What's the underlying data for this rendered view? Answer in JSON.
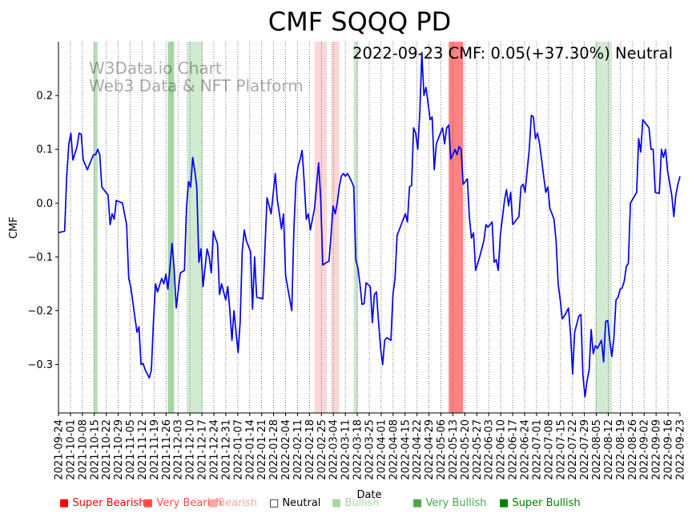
{
  "chart_data": {
    "type": "line",
    "title": "CMF SQQQ PD",
    "xlabel": "Date",
    "ylabel": "CMF",
    "annotation": "2022-09-23 CMF: 0.05(+37.30%) Neutral",
    "watermark": [
      "W3Data.io Chart",
      "Web3 Data & NFT Platform"
    ],
    "ylim": [
      -0.39,
      0.3
    ],
    "yticks": [
      -0.3,
      -0.2,
      -0.1,
      0.0,
      0.1,
      0.2
    ],
    "ytick_labels": [
      "−0.3",
      "−0.2",
      "−0.1",
      "0.0",
      "0.1",
      "0.2"
    ],
    "x_start": "2021-09-24",
    "x_end": "2022-09-23",
    "xtick_labels": [
      "2021-09-24",
      "2021-10-01",
      "2021-10-08",
      "2021-10-15",
      "2021-10-22",
      "2021-10-29",
      "2021-11-05",
      "2021-11-12",
      "2021-11-19",
      "2021-11-26",
      "2021-12-03",
      "2021-12-10",
      "2021-12-17",
      "2021-12-24",
      "2021-12-31",
      "2022-01-07",
      "2022-01-14",
      "2022-01-21",
      "2022-01-28",
      "2022-02-04",
      "2022-02-11",
      "2022-02-18",
      "2022-02-25",
      "2022-03-04",
      "2022-03-11",
      "2022-03-18",
      "2022-03-25",
      "2022-04-01",
      "2022-04-08",
      "2022-04-15",
      "2022-04-22",
      "2022-04-29",
      "2022-05-06",
      "2022-05-13",
      "2022-05-20",
      "2022-05-27",
      "2022-06-03",
      "2022-06-10",
      "2022-06-17",
      "2022-06-24",
      "2022-07-01",
      "2022-07-08",
      "2022-07-15",
      "2022-07-22",
      "2022-07-29",
      "2022-08-05",
      "2022-08-12",
      "2022-08-19",
      "2022-08-26",
      "2022-09-02",
      "2022-09-09",
      "2022-09-16",
      "2022-09-23"
    ],
    "series": [
      {
        "name": "CMF",
        "color": "#0000ee",
        "points": [
          [
            0,
            -0.055
          ],
          [
            3,
            -0.052
          ],
          [
            4,
            0.05
          ],
          [
            5,
            0.11
          ],
          [
            6,
            0.13
          ],
          [
            7,
            0.08
          ],
          [
            9,
            0.105
          ],
          [
            10,
            0.13
          ],
          [
            11,
            0.128
          ],
          [
            12,
            0.08
          ],
          [
            14,
            0.062
          ],
          [
            15,
            0.072
          ],
          [
            17,
            0.09
          ],
          [
            18,
            0.09
          ],
          [
            19,
            0.1
          ],
          [
            20,
            0.09
          ],
          [
            21,
            0.03
          ],
          [
            24,
            0.015
          ],
          [
            25,
            -0.04
          ],
          [
            26,
            -0.02
          ],
          [
            27,
            -0.03
          ],
          [
            28,
            0.005
          ],
          [
            31,
            0.0
          ],
          [
            32,
            -0.02
          ],
          [
            33,
            -0.04
          ],
          [
            34,
            -0.14
          ],
          [
            35,
            -0.155
          ],
          [
            38,
            -0.24
          ],
          [
            39,
            -0.23
          ],
          [
            40,
            -0.3
          ],
          [
            41,
            -0.298
          ],
          [
            42,
            -0.31
          ],
          [
            44,
            -0.325
          ],
          [
            45,
            -0.31
          ],
          [
            46,
            -0.22
          ],
          [
            47,
            -0.15
          ],
          [
            48,
            -0.165
          ],
          [
            50,
            -0.14
          ],
          [
            51,
            -0.15
          ],
          [
            52,
            -0.132
          ],
          [
            53,
            -0.16
          ],
          [
            54,
            -0.12
          ],
          [
            55,
            -0.075
          ],
          [
            56,
            -0.12
          ],
          [
            57,
            -0.195
          ],
          [
            59,
            -0.13
          ],
          [
            61,
            -0.125
          ],
          [
            62,
            -0.01
          ],
          [
            63,
            0.04
          ],
          [
            64,
            0.03
          ],
          [
            65,
            0.085
          ],
          [
            66,
            0.06
          ],
          [
            67,
            0.03
          ],
          [
            68,
            -0.11
          ],
          [
            69,
            -0.085
          ],
          [
            70,
            -0.155
          ],
          [
            72,
            -0.085
          ],
          [
            73,
            -0.1
          ],
          [
            74,
            -0.13
          ],
          [
            75,
            -0.052
          ],
          [
            76,
            -0.065
          ],
          [
            77,
            -0.075
          ],
          [
            78,
            -0.17
          ],
          [
            79,
            -0.15
          ],
          [
            81,
            -0.18
          ],
          [
            82,
            -0.155
          ],
          [
            83,
            -0.2
          ],
          [
            84,
            -0.255
          ],
          [
            85,
            -0.2
          ],
          [
            86,
            -0.24
          ],
          [
            87,
            -0.278
          ],
          [
            88,
            -0.22
          ],
          [
            89,
            -0.09
          ],
          [
            90,
            -0.05
          ],
          [
            91,
            -0.07
          ],
          [
            93,
            -0.09
          ],
          [
            94,
            -0.197
          ],
          [
            95,
            -0.1
          ],
          [
            96,
            -0.175
          ],
          [
            99,
            -0.178
          ],
          [
            101,
            0.01
          ],
          [
            102,
            -0.005
          ],
          [
            103,
            -0.02
          ],
          [
            105,
            0.055
          ],
          [
            106,
            0.005
          ],
          [
            107,
            -0.02
          ],
          [
            108,
            -0.048
          ],
          [
            109,
            -0.02
          ],
          [
            110,
            -0.135
          ],
          [
            113,
            -0.2
          ],
          [
            114,
            -0.05
          ],
          [
            115,
            0.04
          ],
          [
            116,
            0.068
          ],
          [
            117,
            0.08
          ],
          [
            118,
            0.098
          ],
          [
            119,
            0.04
          ],
          [
            120,
            -0.03
          ],
          [
            121,
            -0.02
          ],
          [
            122,
            -0.05
          ],
          [
            124,
            -0.01
          ],
          [
            126,
            0.075
          ],
          [
            127,
            0.01
          ],
          [
            128,
            -0.115
          ],
          [
            130,
            -0.11
          ],
          [
            131,
            -0.108
          ],
          [
            132,
            -0.06
          ],
          [
            133,
            -0.005
          ],
          [
            134,
            -0.02
          ],
          [
            135,
            0.0
          ],
          [
            136,
            0.03
          ],
          [
            137,
            0.05
          ],
          [
            138,
            0.055
          ],
          [
            139,
            0.05
          ],
          [
            140,
            0.055
          ],
          [
            141,
            0.048
          ],
          [
            142,
            0.04
          ],
          [
            143,
            0.03
          ],
          [
            144,
            -0.105
          ],
          [
            145,
            -0.12
          ],
          [
            146,
            -0.15
          ],
          [
            147,
            -0.188
          ],
          [
            148,
            -0.187
          ],
          [
            149,
            -0.148
          ],
          [
            151,
            -0.155
          ],
          [
            152,
            -0.222
          ],
          [
            153,
            -0.17
          ],
          [
            154,
            -0.165
          ],
          [
            155,
            -0.22
          ],
          [
            156,
            -0.27
          ],
          [
            157,
            -0.3
          ],
          [
            158,
            -0.255
          ],
          [
            159,
            -0.25
          ],
          [
            161,
            -0.255
          ],
          [
            162,
            -0.17
          ],
          [
            163,
            -0.14
          ],
          [
            164,
            -0.06
          ],
          [
            167,
            -0.03
          ],
          [
            168,
            -0.02
          ],
          [
            169,
            -0.035
          ],
          [
            170,
            0.03
          ],
          [
            171,
            0.033
          ],
          [
            172,
            0.14
          ],
          [
            173,
            0.13
          ],
          [
            174,
            0.1
          ],
          [
            175,
            0.17
          ],
          [
            176,
            0.28
          ],
          [
            177,
            0.2
          ],
          [
            178,
            0.215
          ],
          [
            180,
            0.155
          ],
          [
            181,
            0.16
          ],
          [
            182,
            0.062
          ],
          [
            183,
            0.11
          ],
          [
            185,
            0.13
          ],
          [
            186,
            0.14
          ],
          [
            187,
            0.11
          ],
          [
            188,
            0.14
          ],
          [
            189,
            0.145
          ],
          [
            190,
            0.082
          ],
          [
            191,
            0.09
          ],
          [
            192,
            0.1
          ],
          [
            193,
            0.09
          ],
          [
            194,
            0.105
          ],
          [
            195,
            0.1
          ],
          [
            196,
            0.035
          ],
          [
            197,
            0.04
          ],
          [
            198,
            0.045
          ],
          [
            199,
            -0.025
          ],
          [
            200,
            -0.065
          ],
          [
            201,
            -0.055
          ],
          [
            202,
            -0.125
          ],
          [
            204,
            -0.1
          ],
          [
            206,
            -0.07
          ],
          [
            207,
            -0.04
          ],
          [
            208,
            -0.045
          ],
          [
            210,
            -0.035
          ],
          [
            211,
            -0.11
          ],
          [
            212,
            -0.105
          ],
          [
            213,
            -0.125
          ],
          [
            214,
            -0.06
          ],
          [
            216,
            0.005
          ],
          [
            217,
            0.025
          ],
          [
            218,
            -0.005
          ],
          [
            219,
            0.02
          ],
          [
            220,
            -0.04
          ],
          [
            222,
            -0.03
          ],
          [
            223,
            -0.025
          ],
          [
            224,
            0.03
          ],
          [
            225,
            0.035
          ],
          [
            226,
            0.02
          ],
          [
            227,
            0.06
          ],
          [
            228,
            0.1
          ],
          [
            229,
            0.163
          ],
          [
            230,
            0.16
          ],
          [
            231,
            0.12
          ],
          [
            232,
            0.13
          ],
          [
            233,
            0.11
          ],
          [
            234,
            0.08
          ],
          [
            235,
            0.05
          ],
          [
            236,
            0.02
          ],
          [
            237,
            0.03
          ],
          [
            238,
            -0.01
          ],
          [
            239,
            -0.02
          ],
          [
            240,
            -0.03
          ],
          [
            241,
            -0.07
          ],
          [
            242,
            -0.15
          ],
          [
            243,
            -0.18
          ],
          [
            244,
            -0.215
          ],
          [
            245,
            -0.21
          ],
          [
            247,
            -0.195
          ],
          [
            248,
            -0.245
          ],
          [
            249,
            -0.318
          ],
          [
            250,
            -0.24
          ],
          [
            252,
            -0.21
          ],
          [
            253,
            -0.207
          ],
          [
            254,
            -0.32
          ],
          [
            255,
            -0.36
          ],
          [
            256,
            -0.33
          ],
          [
            257,
            -0.31
          ],
          [
            258,
            -0.235
          ],
          [
            259,
            -0.28
          ],
          [
            260,
            -0.265
          ],
          [
            261,
            -0.27
          ],
          [
            263,
            -0.255
          ],
          [
            264,
            -0.295
          ],
          [
            265,
            -0.22
          ],
          [
            266,
            -0.218
          ],
          [
            267,
            -0.255
          ],
          [
            268,
            -0.285
          ],
          [
            269,
            -0.25
          ],
          [
            270,
            -0.18
          ],
          [
            271,
            -0.175
          ],
          [
            272,
            -0.16
          ],
          [
            273,
            -0.158
          ],
          [
            274,
            -0.145
          ],
          [
            275,
            -0.118
          ],
          [
            276,
            -0.112
          ],
          [
            277,
            0.0
          ],
          [
            280,
            0.02
          ],
          [
            281,
            0.12
          ],
          [
            282,
            0.095
          ],
          [
            283,
            0.155
          ],
          [
            286,
            0.14
          ],
          [
            287,
            0.1
          ],
          [
            288,
            0.1
          ],
          [
            289,
            0.02
          ],
          [
            291,
            0.018
          ],
          [
            292,
            0.1
          ],
          [
            293,
            0.085
          ],
          [
            294,
            0.1
          ],
          [
            295,
            0.06
          ],
          [
            297,
            0.015
          ],
          [
            298,
            -0.025
          ],
          [
            299,
            0.015
          ],
          [
            300,
            0.035
          ],
          [
            301,
            0.05
          ]
        ]
      }
    ],
    "shaded_regions": [
      {
        "start": 17,
        "end": 19,
        "sentiment": "Bullish",
        "color": "#a6d6a6",
        "opacity": 0.75
      },
      {
        "start": 53,
        "end": 56,
        "sentiment": "Very Bullish",
        "color": "#56b356",
        "opacity": 0.55
      },
      {
        "start": 62,
        "end": 70,
        "sentiment": "Bullish",
        "color": "#a6d6a6",
        "opacity": 0.5
      },
      {
        "start": 124,
        "end": 130,
        "sentiment": "Bearish",
        "color": "#f7a6a6",
        "opacity": 0.45
      },
      {
        "start": 132,
        "end": 136,
        "sentiment": "Bearish",
        "color": "#f7a6a6",
        "opacity": 0.45
      },
      {
        "start": 143,
        "end": 145,
        "sentiment": "Bullish",
        "color": "#a6d6a6",
        "opacity": 0.6
      },
      {
        "start": 189,
        "end": 196,
        "sentiment": "Very Bearish",
        "color": "#ff4d4d",
        "opacity": 0.7
      },
      {
        "start": 260,
        "end": 268,
        "sentiment": "Bullish",
        "color": "#a6d6a6",
        "opacity": 0.5
      }
    ],
    "legend": [
      {
        "label": "Super Bearish",
        "symbol": "■",
        "color": "#ff0000",
        "text_color": "#ff0000"
      },
      {
        "label": "Very Bearish",
        "symbol": "■",
        "color": "#ff4d4d",
        "text_color": "#ff4d4d"
      },
      {
        "label": "Bearish",
        "symbol": "■",
        "color": "#f7a6a6",
        "text_color": "#f7a6a6"
      },
      {
        "label": "Neutral",
        "symbol": "□",
        "color": "#000000",
        "text_color": "#000000"
      },
      {
        "label": "Bullish",
        "symbol": "■",
        "color": "#a6d6a6",
        "text_color": "#a6d6a6"
      },
      {
        "label": "Very Bullish",
        "symbol": "■",
        "color": "#4da64d",
        "text_color": "#4da64d"
      },
      {
        "label": "Super Bullish",
        "symbol": "■",
        "color": "#008000",
        "text_color": "#008000"
      }
    ]
  }
}
